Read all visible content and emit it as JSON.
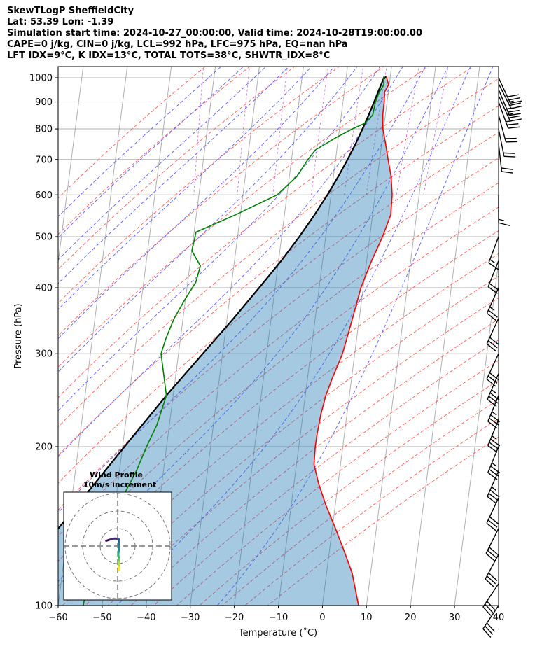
{
  "header": {
    "line1": "SkewTLogP SheffieldCity",
    "line2": "Lat: 53.39   Lon: -1.39",
    "line3": "Simulation start time: 2024-10-27_00:00:00, Valid time: 2024-10-28T19:00:00.00",
    "line4": "CAPE=0 j/kg, CIN=0 j/kg, LCL=992 hPa, LFC=975 hPa, EQ=nan hPa",
    "line5": "LFT IDX=9°C, K IDX=13°C, TOTAL TOTS=38°C, SHWTR_IDX=8°C"
  },
  "chart_data": {
    "type": "skewt-logp",
    "xlabel": "Temperature (˚C)",
    "ylabel": "Pressure (hPa)",
    "xlim": [
      -60,
      40
    ],
    "ylim": [
      1050,
      100
    ],
    "x_ticks": [
      -60,
      -50,
      -40,
      -30,
      -20,
      -10,
      0,
      10,
      20,
      30,
      40
    ],
    "x_tick_labels": [
      "−60",
      "−50",
      "−40",
      "−30",
      "−20",
      "−10",
      "0",
      "10",
      "20",
      "30",
      "40"
    ],
    "y_ticks": [
      1000,
      900,
      800,
      700,
      600,
      500,
      400,
      300,
      200,
      100
    ],
    "grid": true,
    "series": [
      {
        "role": "temperature",
        "color": "#ff0000",
        "points": [
          [
            1005,
            14.2
          ],
          [
            970,
            14.5
          ],
          [
            940,
            13.4
          ],
          [
            900,
            13.0
          ],
          [
            850,
            12.3
          ],
          [
            800,
            11.9
          ],
          [
            750,
            12.1
          ],
          [
            700,
            12.2
          ],
          [
            650,
            12.4
          ],
          [
            600,
            12.1
          ],
          [
            550,
            11.2
          ],
          [
            500,
            8.7
          ],
          [
            450,
            5.5
          ],
          [
            400,
            2.3
          ],
          [
            350,
            -0.5
          ],
          [
            300,
            -3.8
          ],
          [
            270,
            -6.8
          ],
          [
            250,
            -8.8
          ],
          [
            230,
            -10.5
          ],
          [
            210,
            -12.0
          ],
          [
            200,
            -12.7
          ],
          [
            185,
            -13.5
          ],
          [
            170,
            -13.0
          ],
          [
            155,
            -12.0
          ],
          [
            140,
            -10.5
          ],
          [
            125,
            -9.0
          ],
          [
            115,
            -8.0
          ],
          [
            100,
            -7.5
          ]
        ]
      },
      {
        "role": "dewpoint",
        "color": "#008000",
        "points": [
          [
            1005,
            13.6
          ],
          [
            970,
            13.4
          ],
          [
            940,
            12.2
          ],
          [
            900,
            11.0
          ],
          [
            850,
            10.0
          ],
          [
            820,
            8.0
          ],
          [
            800,
            5.0
          ],
          [
            770,
            1.0
          ],
          [
            730,
            -4.0
          ],
          [
            700,
            -6.0
          ],
          [
            650,
            -9.0
          ],
          [
            600,
            -14.0
          ],
          [
            550,
            -24.0
          ],
          [
            510,
            -33.5
          ],
          [
            470,
            -35.0
          ],
          [
            440,
            -33.5
          ],
          [
            410,
            -35.0
          ],
          [
            380,
            -38.0
          ],
          [
            350,
            -41.0
          ],
          [
            320,
            -43.5
          ],
          [
            300,
            -45.0
          ],
          [
            280,
            -45.0
          ],
          [
            250,
            -45.0
          ],
          [
            220,
            -48.0
          ],
          [
            200,
            -51.0
          ],
          [
            180,
            -54.0
          ],
          [
            160,
            -58.0
          ],
          [
            140,
            -63.0
          ],
          [
            130,
            -65.0
          ],
          [
            120,
            -67.0
          ],
          [
            100,
            -70.0
          ]
        ]
      },
      {
        "role": "parcel",
        "color": "#000000",
        "points": [
          [
            1005,
            14.2
          ],
          [
            992,
            13.4
          ],
          [
            950,
            12.2
          ],
          [
            900,
            10.7
          ],
          [
            850,
            9.1
          ],
          [
            800,
            7.3
          ],
          [
            750,
            5.3
          ],
          [
            700,
            3.0
          ],
          [
            650,
            0.4
          ],
          [
            600,
            -2.6
          ],
          [
            550,
            -6.1
          ],
          [
            500,
            -10.2
          ],
          [
            450,
            -15.0
          ],
          [
            400,
            -20.8
          ],
          [
            350,
            -27.5
          ],
          [
            300,
            -35.5
          ],
          [
            250,
            -45.0
          ],
          [
            200,
            -56.0
          ],
          [
            150,
            -70.0
          ],
          [
            100,
            -90.0
          ]
        ]
      }
    ],
    "barbs": [
      {
        "p": 1000,
        "u": -6,
        "v": 13
      },
      {
        "p": 975,
        "u": -6,
        "v": 12
      },
      {
        "p": 950,
        "u": -5,
        "v": 12
      },
      {
        "p": 925,
        "u": -5,
        "v": 11
      },
      {
        "p": 900,
        "u": -4,
        "v": 11
      },
      {
        "p": 850,
        "u": -3,
        "v": 11
      },
      {
        "p": 800,
        "u": -2,
        "v": 10
      },
      {
        "p": 750,
        "u": -1,
        "v": 9
      },
      {
        "p": 600,
        "u": 0,
        "v": 7
      },
      {
        "p": 500,
        "u": 3,
        "v": 8
      },
      {
        "p": 450,
        "u": 4,
        "v": 10
      },
      {
        "p": 400,
        "u": 5,
        "v": 11
      },
      {
        "p": 350,
        "u": 6,
        "v": 13
      },
      {
        "p": 300,
        "u": 7,
        "v": 15
      },
      {
        "p": 275,
        "u": 7,
        "v": 16
      },
      {
        "p": 250,
        "u": 7,
        "v": 17
      },
      {
        "p": 225,
        "u": 7,
        "v": 17
      },
      {
        "p": 200,
        "u": 7,
        "v": 17
      },
      {
        "p": 180,
        "u": 7,
        "v": 16
      },
      {
        "p": 160,
        "u": 7,
        "v": 15
      },
      {
        "p": 140,
        "u": 7,
        "v": 14
      },
      {
        "p": 125,
        "u": 7,
        "v": 13
      },
      {
        "p": 110,
        "u": 8,
        "v": 12
      },
      {
        "p": 100,
        "u": 8,
        "v": 12
      }
    ],
    "hodograph": {
      "title": "Wind Profile",
      "subtitle": "10m/s increment",
      "rings_ms": [
        10,
        20,
        30
      ],
      "points": [
        [
          0.6,
          -14.0
        ],
        [
          0.7,
          -12.5
        ],
        [
          0.8,
          -11.0
        ],
        [
          0.9,
          -9.5
        ],
        [
          0.8,
          -8.0
        ],
        [
          0.6,
          -6.5
        ],
        [
          0.4,
          -5.0
        ],
        [
          0.5,
          -3.5
        ],
        [
          0.8,
          -2.0
        ],
        [
          0.8,
          -0.5
        ],
        [
          0.7,
          1.0
        ],
        [
          0.7,
          2.5
        ],
        [
          0.6,
          4.0
        ],
        [
          -1.0,
          4.3
        ],
        [
          -3.0,
          4.2
        ],
        [
          -5.0,
          3.5
        ],
        [
          -6.5,
          3.0
        ]
      ]
    }
  }
}
